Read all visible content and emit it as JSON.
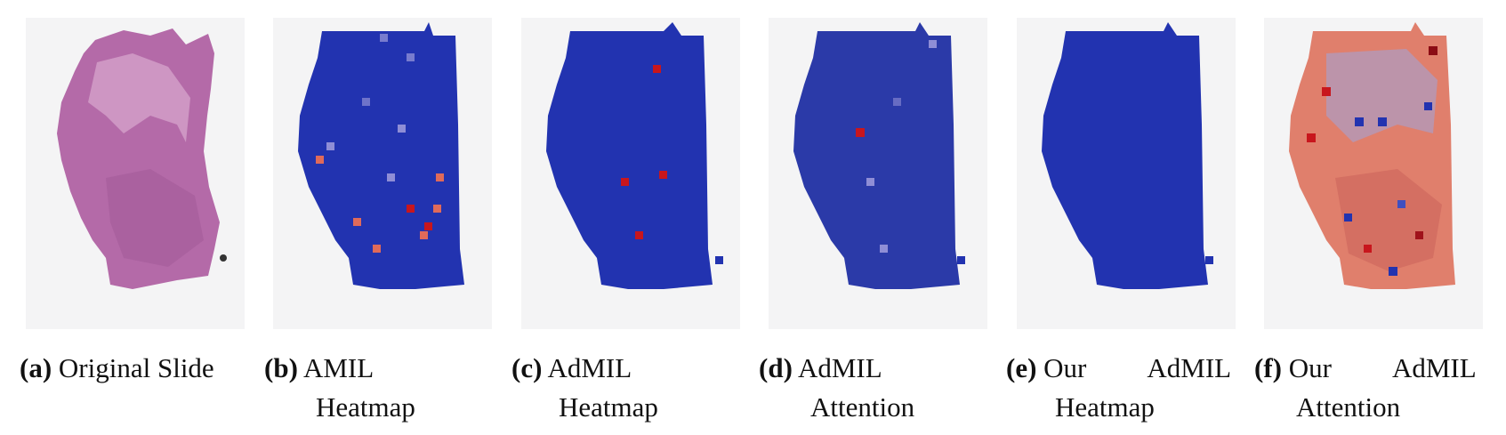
{
  "figure": {
    "panels": [
      {
        "tag": "(a)",
        "text": "Original Slide",
        "line1": "Original Slide",
        "line2": "",
        "style": "he"
      },
      {
        "tag": "(b)",
        "text": "AMIL Heatmap",
        "line1": "AMIL",
        "line2": "Heatmap",
        "style": "heat"
      },
      {
        "tag": "(c)",
        "text": "AdMIL Heatmap",
        "line1": "AdMIL",
        "line2": "Heatmap",
        "style": "heat"
      },
      {
        "tag": "(d)",
        "text": "AdMIL Attention",
        "line1": "AdMIL",
        "line2": "Attention",
        "style": "heat"
      },
      {
        "tag": "(e)",
        "text": "Our AdMIL Heatmap",
        "line1": "Our AdMIL",
        "line2": "Heatmap",
        "style": "heat"
      },
      {
        "tag": "(f)",
        "text": "Our AdMIL Attention",
        "line1": "Our AdMIL",
        "line2": "Attention",
        "style": "attention"
      }
    ],
    "colors": {
      "background": "#f4f4f5",
      "tissue_he": "#b46aa8",
      "low_score": "#2233b0",
      "high_score": "#c8161d",
      "mid_score": "#8f8ed6"
    }
  }
}
